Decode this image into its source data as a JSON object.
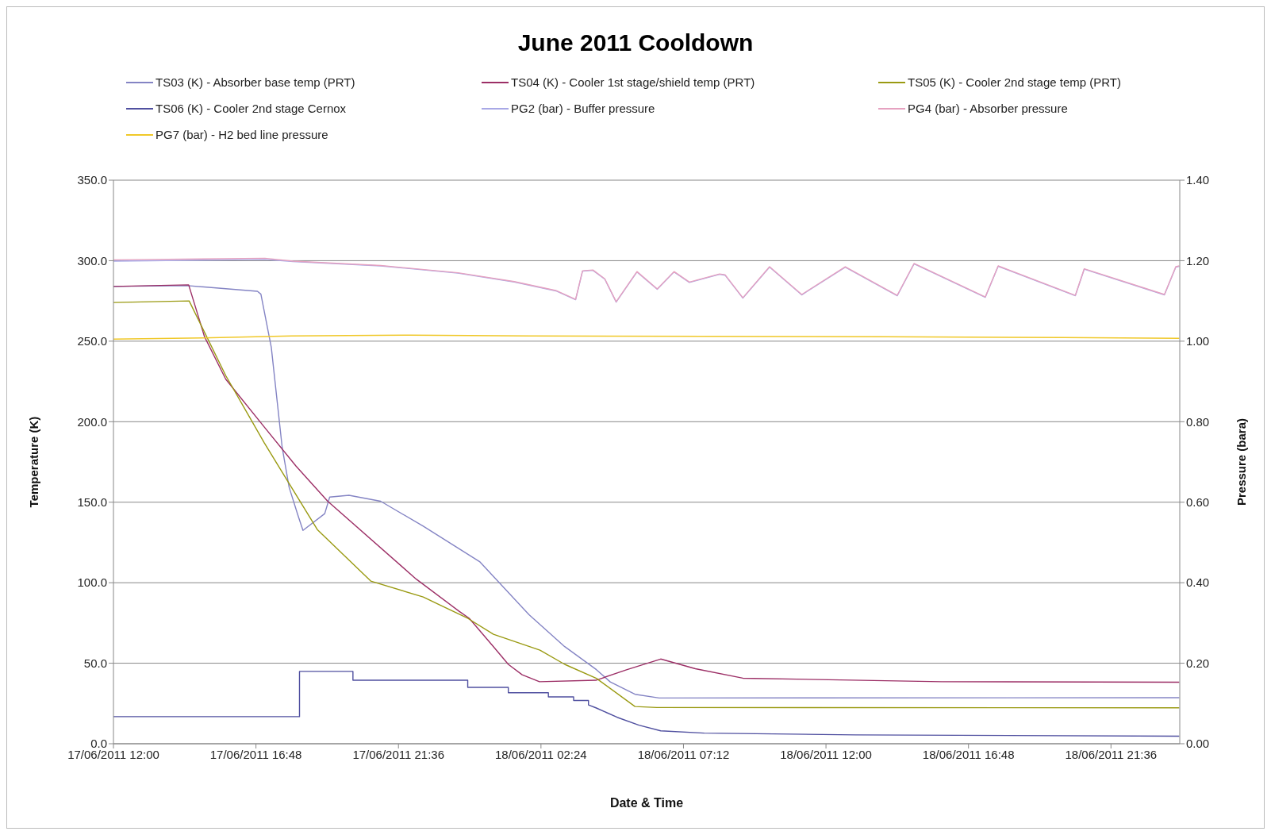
{
  "chart_data": {
    "type": "line",
    "title": "June 2011 Cooldown",
    "xlabel": "Date & Time",
    "ylabel": "Temperature (K)",
    "y2label": "Pressure (bara)",
    "xlim": [
      "2011-06-17T12:00",
      "2011-06-18T23:55"
    ],
    "xticks": [
      {
        "value": "2011-06-17T12:00",
        "label": "17/06/2011 12:00"
      },
      {
        "value": "2011-06-17T16:48",
        "label": "17/06/2011 16:48"
      },
      {
        "value": "2011-06-17T21:36",
        "label": "17/06/2011 21:36"
      },
      {
        "value": "2011-06-18T02:24",
        "label": "18/06/2011 02:24"
      },
      {
        "value": "2011-06-18T07:12",
        "label": "18/06/2011 07:12"
      },
      {
        "value": "2011-06-18T12:00",
        "label": "18/06/2011 12:00"
      },
      {
        "value": "2011-06-18T16:48",
        "label": "18/06/2011 16:48"
      },
      {
        "value": "2011-06-18T21:36",
        "label": "18/06/2011 21:36"
      }
    ],
    "ylim": [
      0,
      350
    ],
    "yticks": [
      {
        "value": 0,
        "label": "0.0"
      },
      {
        "value": 50,
        "label": "50.0"
      },
      {
        "value": 100,
        "label": "100.0"
      },
      {
        "value": 150,
        "label": "150.0"
      },
      {
        "value": 200,
        "label": "200.0"
      },
      {
        "value": 250,
        "label": "250.0"
      },
      {
        "value": 300,
        "label": "300.0"
      },
      {
        "value": 350,
        "label": "350.0"
      }
    ],
    "y2lim": [
      0,
      1.4
    ],
    "y2ticks": [
      {
        "value": 0,
        "label": "0.00"
      },
      {
        "value": 0.2,
        "label": "0.20"
      },
      {
        "value": 0.4,
        "label": "0.40"
      },
      {
        "value": 0.6,
        "label": "0.60"
      },
      {
        "value": 0.8,
        "label": "0.80"
      },
      {
        "value": 1.0,
        "label": "1.00"
      },
      {
        "value": 1.2,
        "label": "1.20"
      },
      {
        "value": 1.4,
        "label": "1.40"
      }
    ],
    "grid": "y",
    "legend": "top",
    "marker": "none",
    "line_style": "solid",
    "series": [
      {
        "name": "TS03 (K) - Absorber base temp (PRT)",
        "color": "#8484c4",
        "x": [
          "2011-06-17T12:00",
          "2011-06-17T14:30",
          "2011-06-17T16:51",
          "2011-06-17T16:58",
          "2011-06-17T17:19",
          "2011-06-17T17:41",
          "2011-06-17T17:55",
          "2011-06-17T18:13",
          "2011-06-17T18:23",
          "2011-06-17T19:07",
          "2011-06-17T19:17",
          "2011-06-17T19:56",
          "2011-06-17T21:00",
          "2011-06-17T22:26",
          "2011-06-18T00:20",
          "2011-06-18T02:00",
          "2011-06-18T03:12",
          "2011-06-18T04:16",
          "2011-06-18T04:44",
          "2011-06-18T05:34",
          "2011-06-18T06:23",
          "2011-06-18T23:54"
        ],
        "values": [
          284,
          284.5,
          281,
          279.2,
          246.2,
          184,
          159.3,
          141.7,
          132.5,
          142.9,
          153.2,
          154.3,
          150.6,
          135.1,
          113.1,
          80.1,
          60.3,
          46,
          38.4,
          30.7,
          28.4,
          28.6
        ]
      },
      {
        "name": "TS04 (K) - Cooler 1st stage/shield temp (PRT)",
        "color": "#9c2f66",
        "x": [
          "2011-06-17T12:00",
          "2011-06-17T14:32",
          "2011-06-17T15:04",
          "2011-06-17T15:47",
          "2011-06-17T17:05",
          "2011-06-17T18:09",
          "2011-06-17T19:13",
          "2011-06-17T22:12",
          "2011-06-17T23:38",
          "2011-06-17T23:59",
          "2011-06-18T00:48",
          "2011-06-18T01:18",
          "2011-06-18T01:46",
          "2011-06-18T02:21",
          "2011-06-18T04:15",
          "2011-06-18T05:18",
          "2011-06-18T06:26",
          "2011-06-18T07:36",
          "2011-06-18T09:12",
          "2011-06-18T15:54",
          "2011-06-18T23:54"
        ],
        "values": [
          284,
          285,
          252.8,
          226.4,
          196.6,
          172.4,
          150.6,
          102.2,
          82.4,
          77.9,
          60.3,
          49.3,
          42.8,
          38.5,
          39.4,
          46,
          52.6,
          46.6,
          40.7,
          38.5,
          38.2
        ]
      },
      {
        "name": "TS05 (K) - Cooler 2nd stage temp (PRT)",
        "color": "#9a9a12",
        "x": [
          "2011-06-17T12:00",
          "2011-06-17T14:33",
          "2011-06-17T15:47",
          "2011-06-17T17:05",
          "2011-06-17T17:55",
          "2011-06-17T18:52",
          "2011-06-17T20:40",
          "2011-06-17T22:26",
          "2011-06-17T23:56",
          "2011-06-18T00:48",
          "2011-06-18T02:22",
          "2011-06-18T03:12",
          "2011-06-18T04:16",
          "2011-06-18T05:34",
          "2011-06-18T06:18",
          "2011-06-18T23:54"
        ],
        "values": [
          274,
          275,
          228.6,
          186.8,
          161.6,
          133,
          101,
          91.1,
          77.9,
          68,
          58.1,
          49.3,
          40.6,
          23.1,
          22.5,
          22.3
        ]
      },
      {
        "name": "TS06 (K) - Cooler 2nd stage Cernox",
        "color": "#5050a0",
        "x": [
          "2011-06-17T12:00",
          "2011-06-17T18:16",
          "2011-06-17T18:16",
          "2011-06-17T20:04",
          "2011-06-17T20:04",
          "2011-06-17T23:56",
          "2011-06-17T23:56",
          "2011-06-18T01:18",
          "2011-06-18T01:18",
          "2011-06-18T02:39",
          "2011-06-18T02:39",
          "2011-06-18T03:30",
          "2011-06-18T03:30",
          "2011-06-18T04:00",
          "2011-06-18T04:00",
          "2011-06-18T04:15",
          "2011-06-18T04:58",
          "2011-06-18T05:42",
          "2011-06-18T06:26",
          "2011-06-18T07:54",
          "2011-06-18T13:00",
          "2011-06-18T23:54"
        ],
        "values": [
          16.8,
          16.8,
          44.9,
          44.9,
          39.4,
          39.4,
          35,
          35,
          31.7,
          31.7,
          29.1,
          29.1,
          26.9,
          26.9,
          24.1,
          22.3,
          16.4,
          11.5,
          8.0,
          6.6,
          5.5,
          4.7
        ]
      },
      {
        "name": "PG2 (bar) - Buffer pressure",
        "color": "#a8a8e6",
        "axis": "y2",
        "x": [
          "2011-06-17T12:00",
          "2011-06-17T17:06",
          "2011-06-17T18:03",
          "2011-06-17T21:00",
          "2011-06-17T23:36",
          "2011-06-18T01:30",
          "2011-06-18T02:54",
          "2011-06-18T03:34",
          "2011-06-18T03:48",
          "2011-06-18T04:09",
          "2011-06-18T04:33",
          "2011-06-18T04:56",
          "2011-06-18T05:38",
          "2011-06-18T06:19",
          "2011-06-18T06:53",
          "2011-06-18T07:24",
          "2011-06-18T08:25",
          "2011-06-18T08:36",
          "2011-06-18T09:12",
          "2011-06-18T10:06",
          "2011-06-18T11:11",
          "2011-06-18T12:39",
          "2011-06-18T14:24",
          "2011-06-18T14:58",
          "2011-06-18T17:22",
          "2011-06-18T17:48",
          "2011-06-18T20:24",
          "2011-06-18T20:42",
          "2011-06-18T23:24",
          "2011-06-18T23:47",
          "2011-06-18T23:54"
        ],
        "values": [
          1.199,
          1.203,
          1.198,
          1.187,
          1.169,
          1.147,
          1.125,
          1.103,
          1.174,
          1.176,
          1.154,
          1.097,
          1.172,
          1.129,
          1.172,
          1.146,
          1.166,
          1.164,
          1.107,
          1.184,
          1.115,
          1.184,
          1.113,
          1.192,
          1.109,
          1.186,
          1.113,
          1.179,
          1.115,
          1.184,
          1.186
        ]
      },
      {
        "name": "PG4 (bar) - Absorber pressure",
        "color": "#e6a2c0",
        "axis": "y2",
        "x": [
          "2011-06-17T12:00",
          "2011-06-17T17:06",
          "2011-06-17T18:03",
          "2011-06-17T21:00",
          "2011-06-17T23:36",
          "2011-06-18T01:30",
          "2011-06-18T02:54",
          "2011-06-18T03:34",
          "2011-06-18T03:48",
          "2011-06-18T04:09",
          "2011-06-18T04:33",
          "2011-06-18T04:56",
          "2011-06-18T05:38",
          "2011-06-18T06:19",
          "2011-06-18T06:53",
          "2011-06-18T07:24",
          "2011-06-18T08:25",
          "2011-06-18T08:36",
          "2011-06-18T09:12",
          "2011-06-18T10:06",
          "2011-06-18T11:11",
          "2011-06-18T12:39",
          "2011-06-18T14:24",
          "2011-06-18T14:58",
          "2011-06-18T17:22",
          "2011-06-18T17:48",
          "2011-06-18T20:24",
          "2011-06-18T20:42",
          "2011-06-18T23:24",
          "2011-06-18T23:47",
          "2011-06-18T23:54"
        ],
        "values": [
          1.202,
          1.206,
          1.199,
          1.188,
          1.17,
          1.148,
          1.126,
          1.104,
          1.175,
          1.177,
          1.155,
          1.098,
          1.173,
          1.13,
          1.173,
          1.147,
          1.167,
          1.165,
          1.108,
          1.185,
          1.116,
          1.185,
          1.114,
          1.193,
          1.11,
          1.187,
          1.114,
          1.18,
          1.116,
          1.185,
          1.187
        ]
      },
      {
        "name": "PG7 (bar) - H2 bed line pressure",
        "color": "#f0c828",
        "axis": "y2",
        "x": [
          "2011-06-17T12:00",
          "2011-06-17T15:00",
          "2011-06-17T18:00",
          "2011-06-17T22:00",
          "2011-06-18T02:00",
          "2011-06-18T08:00",
          "2011-06-18T14:00",
          "2011-06-18T20:00",
          "2011-06-18T23:54"
        ],
        "values": [
          1.005,
          1.008,
          1.013,
          1.015,
          1.013,
          1.012,
          1.011,
          1.009,
          1.007
        ]
      }
    ]
  }
}
